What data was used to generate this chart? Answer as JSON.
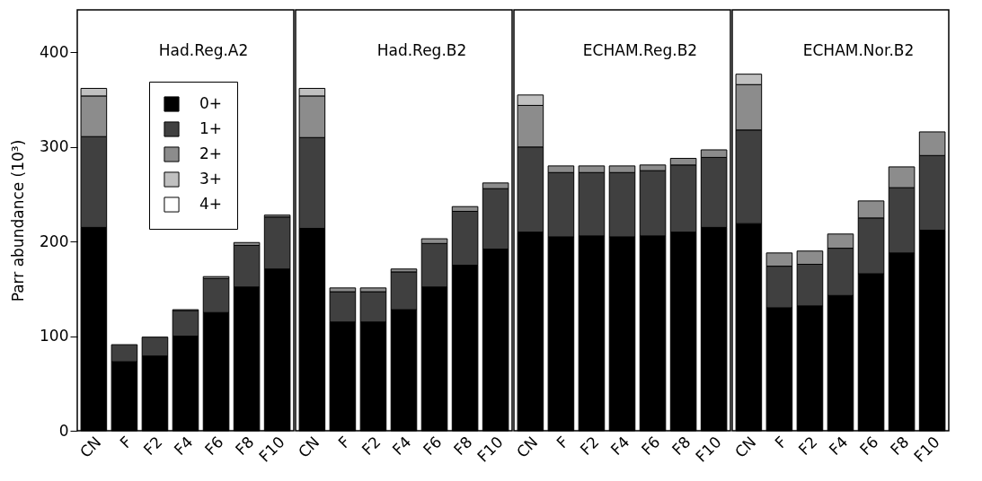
{
  "chart_data": [
    {
      "type": "bar",
      "stacked": true,
      "title": "Had.Reg.A2",
      "ylabel": "Parr abundance (10³)",
      "categories": [
        "CN",
        "F",
        "F2",
        "F4",
        "F6",
        "F8",
        "F10"
      ],
      "ylim": [
        0,
        445
      ],
      "yticks": [
        0,
        100,
        200,
        300,
        400
      ],
      "legend": "top",
      "grid": false,
      "series": [
        {
          "name": "0+",
          "color": "#000000",
          "values": [
            215,
            73,
            79,
            100,
            125,
            152,
            171
          ]
        },
        {
          "name": "1+",
          "color": "#404040",
          "values": [
            96,
            18,
            20,
            27,
            36,
            44,
            55
          ]
        },
        {
          "name": "2+",
          "color": "#8c8c8c",
          "values": [
            43,
            null,
            null,
            1,
            2,
            3,
            2
          ]
        },
        {
          "name": "3+",
          "color": "#c0c0c0",
          "values": [
            8,
            null,
            null,
            null,
            null,
            null,
            null
          ]
        },
        {
          "name": "4+",
          "color": "#ffffff",
          "values": [
            null,
            null,
            null,
            null,
            null,
            null,
            null
          ]
        }
      ]
    },
    {
      "type": "bar",
      "stacked": true,
      "title": "Had.Reg.B2",
      "categories": [
        "CN",
        "F",
        "F2",
        "F4",
        "F6",
        "F8",
        "F10"
      ],
      "ylim": [
        0,
        445
      ],
      "tick_labels": "x",
      "grid": false,
      "series": [
        {
          "color": "#000000",
          "values": [
            214,
            115,
            115,
            128,
            152,
            175,
            192
          ]
        },
        {
          "color": "#404040",
          "values": [
            96,
            32,
            32,
            40,
            46,
            57,
            64
          ]
        },
        {
          "color": "#8c8c8c",
          "values": [
            44,
            4,
            4,
            3,
            5,
            5,
            6
          ]
        },
        {
          "color": "#c0c0c0",
          "values": [
            8,
            null,
            null,
            null,
            null,
            null,
            null
          ]
        },
        {
          "color": "#ffffff",
          "values": [
            null,
            null,
            null,
            null,
            null,
            null,
            null
          ]
        }
      ]
    },
    {
      "type": "bar",
      "stacked": true,
      "title": "ECHAM.Reg.B2",
      "categories": [
        "CN",
        "F",
        "F2",
        "F4",
        "F6",
        "F8",
        "F10"
      ],
      "ylim": [
        0,
        445
      ],
      "tick_labels": "x",
      "grid": false,
      "series": [
        {
          "color": "#000000",
          "values": [
            210,
            205,
            206,
            205,
            206,
            210,
            215
          ]
        },
        {
          "color": "#404040",
          "values": [
            90,
            68,
            67,
            68,
            69,
            71,
            74
          ]
        },
        {
          "color": "#8c8c8c",
          "values": [
            44,
            7,
            7,
            7,
            6,
            7,
            8
          ]
        },
        {
          "color": "#c0c0c0",
          "values": [
            11,
            null,
            null,
            null,
            null,
            null,
            null
          ]
        },
        {
          "color": "#ffffff",
          "values": [
            null,
            null,
            null,
            null,
            null,
            null,
            null
          ]
        }
      ]
    },
    {
      "type": "bar",
      "stacked": true,
      "title": "ECHAM.Nor.B2",
      "categories": [
        "CN",
        "F",
        "F2",
        "F4",
        "F6",
        "F8",
        "F10"
      ],
      "ylim": [
        0,
        445
      ],
      "tick_labels": "x",
      "grid": false,
      "series": [
        {
          "color": "#000000",
          "values": [
            219,
            130,
            132,
            143,
            166,
            188,
            212
          ]
        },
        {
          "color": "#404040",
          "values": [
            99,
            44,
            44,
            50,
            59,
            69,
            79
          ]
        },
        {
          "color": "#8c8c8c",
          "values": [
            48,
            14,
            14,
            15,
            18,
            22,
            25
          ]
        },
        {
          "color": "#c0c0c0",
          "values": [
            11,
            null,
            null,
            null,
            null,
            null,
            null
          ]
        },
        {
          "color": "#ffffff",
          "values": [
            null,
            null,
            null,
            null,
            null,
            null,
            null
          ]
        }
      ]
    }
  ]
}
